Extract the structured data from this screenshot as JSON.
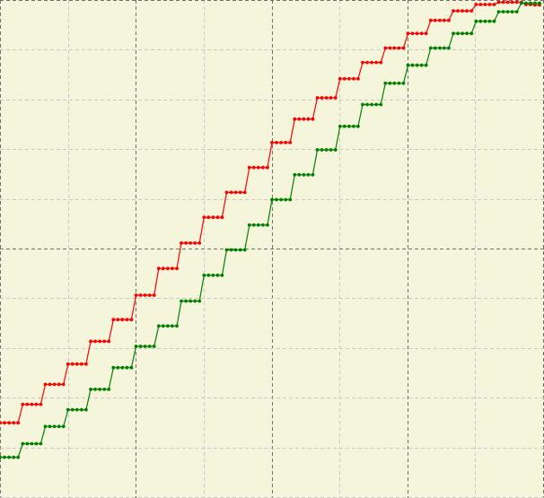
{
  "chart_data": {
    "type": "line",
    "title": "",
    "xlabel": "",
    "ylabel": "",
    "grid": true,
    "xlim": [
      0,
      120
    ],
    "ylim": [
      0,
      110
    ],
    "x_step": 1,
    "series": [
      {
        "color": "#ff0000",
        "values": [
          16.6,
          16.6,
          16.6,
          16.6,
          16.6,
          20.7,
          20.7,
          20.7,
          20.7,
          20.7,
          25.1,
          25.1,
          25.1,
          25.1,
          25.1,
          29.6,
          29.6,
          29.6,
          29.6,
          29.6,
          34.6,
          34.6,
          34.6,
          34.6,
          34.6,
          39.4,
          39.4,
          39.4,
          39.4,
          39.4,
          44.8,
          44.8,
          44.8,
          44.8,
          44.8,
          50.7,
          50.7,
          50.7,
          50.7,
          50.7,
          56.3,
          56.3,
          56.3,
          56.3,
          56.3,
          62.0,
          62.0,
          62.0,
          62.0,
          62.0,
          67.5,
          67.5,
          67.5,
          67.5,
          67.5,
          73.0,
          73.0,
          73.0,
          73.0,
          73.0,
          78.5,
          78.5,
          78.5,
          78.5,
          78.5,
          83.7,
          83.7,
          83.7,
          83.7,
          83.7,
          88.4,
          88.4,
          88.4,
          88.4,
          88.4,
          92.6,
          92.6,
          92.6,
          92.6,
          92.6,
          96.2,
          96.2,
          96.2,
          96.2,
          96.2,
          99.4,
          99.4,
          99.4,
          99.4,
          99.4,
          102.6,
          102.6,
          102.6,
          102.6,
          102.6,
          105.5,
          105.5,
          105.5,
          105.5,
          105.5,
          107.6,
          107.6,
          107.6,
          107.6,
          107.6,
          109.0,
          109.0,
          109.0,
          109.0,
          109.0,
          109.5,
          109.5,
          109.5,
          109.5,
          109.5,
          109.5,
          109.0,
          109.0,
          108.9,
          108.9
        ]
      },
      {
        "color": "#008000",
        "values": [
          9.0,
          9.0,
          9.0,
          9.0,
          9.0,
          12.0,
          12.0,
          12.0,
          12.0,
          12.0,
          15.8,
          15.8,
          15.8,
          15.8,
          15.8,
          19.5,
          19.5,
          19.5,
          19.5,
          19.5,
          24.0,
          24.0,
          24.0,
          24.0,
          24.0,
          28.8,
          28.8,
          28.8,
          28.8,
          28.8,
          33.5,
          33.5,
          33.5,
          33.5,
          33.5,
          38.0,
          38.0,
          38.0,
          38.0,
          38.0,
          43.5,
          43.5,
          43.5,
          43.5,
          43.5,
          49.2,
          49.2,
          49.2,
          49.2,
          49.2,
          54.8,
          54.8,
          54.8,
          54.8,
          54.8,
          60.3,
          60.3,
          60.3,
          60.3,
          60.3,
          65.9,
          65.9,
          65.9,
          65.9,
          65.9,
          71.4,
          71.4,
          71.4,
          71.4,
          71.4,
          76.9,
          76.9,
          76.9,
          76.9,
          76.9,
          82.1,
          82.1,
          82.1,
          82.1,
          82.1,
          86.9,
          86.9,
          86.9,
          86.9,
          86.9,
          91.6,
          91.6,
          91.6,
          91.6,
          91.6,
          95.6,
          95.6,
          95.6,
          95.6,
          95.6,
          99.4,
          99.4,
          99.4,
          99.4,
          99.4,
          102.6,
          102.6,
          102.6,
          102.6,
          102.6,
          105.3,
          105.3,
          105.3,
          105.3,
          105.3,
          107.4,
          107.4,
          107.4,
          107.4,
          107.4,
          109.3,
          109.3,
          109.3,
          109.3,
          109.3
        ]
      }
    ]
  }
}
